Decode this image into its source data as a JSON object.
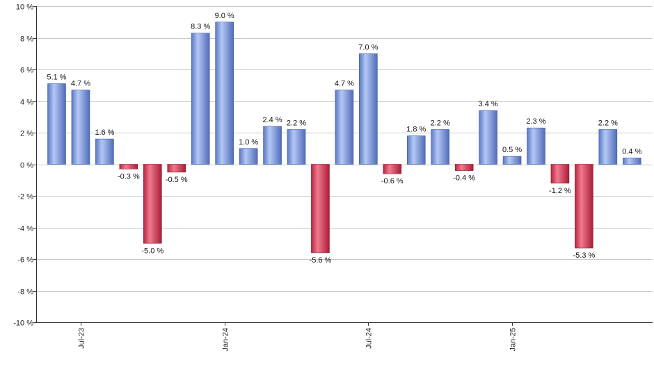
{
  "chart_data": {
    "type": "bar",
    "title": "",
    "xlabel": "",
    "ylabel": "",
    "ylim": [
      -10,
      10
    ],
    "y_ticks": [
      10,
      8,
      6,
      4,
      2,
      0,
      -2,
      -4,
      -6,
      -8,
      -10
    ],
    "y_tick_labels": [
      "10 %",
      "8 %",
      "6 %",
      "4 %",
      "2 %",
      "0 %",
      "-2 %",
      "-4 %",
      "-6 %",
      "-8 %",
      "-10 %"
    ],
    "grid": true,
    "legend": "none",
    "categories": [
      "2023-06",
      "2023-07",
      "2023-08",
      "2023-09",
      "2023-10",
      "2023-11",
      "2023-12",
      "2024-01",
      "2024-02",
      "2024-03",
      "2024-04",
      "2024-05",
      "2024-06",
      "2024-07",
      "2024-08",
      "2024-09",
      "2024-10",
      "2024-11",
      "2024-12",
      "2025-01",
      "2025-02",
      "2025-03",
      "2025-04",
      "2025-05",
      "2025-06"
    ],
    "values": [
      5.1,
      4.7,
      1.6,
      -0.3,
      -5.0,
      -0.5,
      8.3,
      9.0,
      1.0,
      2.4,
      2.2,
      -5.6,
      4.7,
      7.0,
      -0.6,
      1.8,
      2.2,
      -0.4,
      3.4,
      0.5,
      2.3,
      -1.2,
      -5.3,
      2.2,
      0.4
    ],
    "value_labels": [
      "5.1 %",
      "4.7 %",
      "1.6 %",
      "-0.3 %",
      "-5.0 %",
      "-0.5 %",
      "8.3 %",
      "9.0 %",
      "1.0 %",
      "2.4 %",
      "2.2 %",
      "-5.6 %",
      "4.7 %",
      "7.0 %",
      "-0.6 %",
      "1.8 %",
      "2.2 %",
      "-0.4 %",
      "3.4 %",
      "0.5 %",
      "2.3 %",
      "-1.2 %",
      "-5.3 %",
      "2.2 %",
      "0.4 %"
    ],
    "x_ticks": [
      {
        "category": "2023-07",
        "label": "Jul-23"
      },
      {
        "category": "2024-01",
        "label": "Jan-24"
      },
      {
        "category": "2024-07",
        "label": "Jul-24"
      },
      {
        "category": "2025-01",
        "label": "Jan-25"
      }
    ],
    "colors": {
      "positive": "#7f9fe0",
      "negative": "#d0344f",
      "grid": "#c8c8c8",
      "axis": "#333333"
    }
  }
}
